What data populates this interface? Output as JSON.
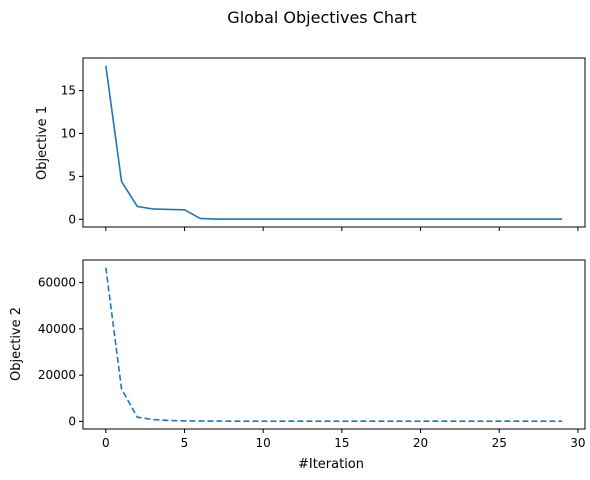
{
  "chart_data": {
    "title": "Global Objectives Chart",
    "xlabel": "#Iteration",
    "x": [
      0,
      1,
      2,
      3,
      4,
      5,
      6,
      7,
      8,
      9,
      10,
      11,
      12,
      13,
      14,
      15,
      16,
      17,
      18,
      19,
      20,
      21,
      22,
      23,
      24,
      25,
      26,
      27,
      28,
      29
    ],
    "xlim": [
      -1.45,
      30.45
    ],
    "xticks": [
      0,
      5,
      10,
      15,
      20,
      25,
      30
    ],
    "panels": [
      {
        "type": "line",
        "ylabel": "Objective 1",
        "ylim": [
          -0.9,
          18.8
        ],
        "yticks": [
          0,
          5,
          10,
          15
        ],
        "show_xtick_labels": false,
        "series": [
          {
            "line_style": "solid",
            "color": "#1f77b4",
            "values": [
              17.9,
              4.4,
              1.5,
              1.2,
              1.15,
              1.1,
              0.1,
              0.02,
              0.02,
              0.02,
              0.02,
              0.02,
              0.02,
              0.02,
              0.02,
              0.02,
              0.02,
              0.02,
              0.02,
              0.02,
              0.02,
              0.02,
              0.02,
              0.02,
              0.02,
              0.02,
              0.02,
              0.02,
              0.02,
              0.02
            ]
          }
        ]
      },
      {
        "type": "line",
        "ylabel": "Objective 2",
        "ylim": [
          -3300,
          69800
        ],
        "yticks": [
          0,
          20000,
          40000,
          60000
        ],
        "show_xtick_labels": true,
        "series": [
          {
            "line_style": "dashed",
            "color": "#1f77b4",
            "values": [
              66500,
              14000,
              1800,
              800,
              400,
              200,
              150,
              120,
              100,
              100,
              100,
              100,
              100,
              100,
              100,
              100,
              100,
              100,
              100,
              100,
              100,
              100,
              100,
              100,
              100,
              100,
              100,
              100,
              100,
              100
            ]
          }
        ]
      }
    ]
  }
}
